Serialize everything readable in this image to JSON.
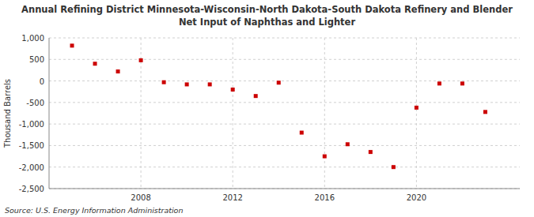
{
  "chart_data": {
    "type": "scatter",
    "title": "Annual Refining District Minnesota-Wisconsin-North Dakota-South Dakota Refinery and Blender",
    "subtitle": "Net Input of Naphthas and Lighter",
    "y_label": "Thousand Barrels",
    "annotations": [
      "Source: U.S. Energy Information Administration"
    ],
    "x": [
      2005,
      2006,
      2007,
      2008,
      2009,
      2010,
      2011,
      2012,
      2013,
      2014,
      2015,
      2016,
      2017,
      2018,
      2019,
      2020,
      2021,
      2022,
      2023
    ],
    "values": [
      820,
      400,
      220,
      480,
      -30,
      -80,
      -80,
      -200,
      -350,
      -40,
      -1200,
      -1750,
      -1470,
      -1650,
      -2000,
      -620,
      -60,
      -60,
      -720
    ],
    "color": "#cc0000",
    "marker": "square",
    "xlim": [
      2004,
      2024.5
    ],
    "xticks": [
      2008,
      2012,
      2016,
      2020
    ],
    "ylim": [
      -2500,
      1000
    ],
    "yticks": [
      {
        "value": -2500,
        "label": "-2,500"
      },
      {
        "value": -2000,
        "label": "-2,000"
      },
      {
        "value": -1500,
        "label": "-1,500"
      },
      {
        "value": -1000,
        "label": "-1,000"
      },
      -500,
      0,
      500,
      {
        "value": 1000,
        "label": "1,000"
      }
    ],
    "grid": true
  }
}
